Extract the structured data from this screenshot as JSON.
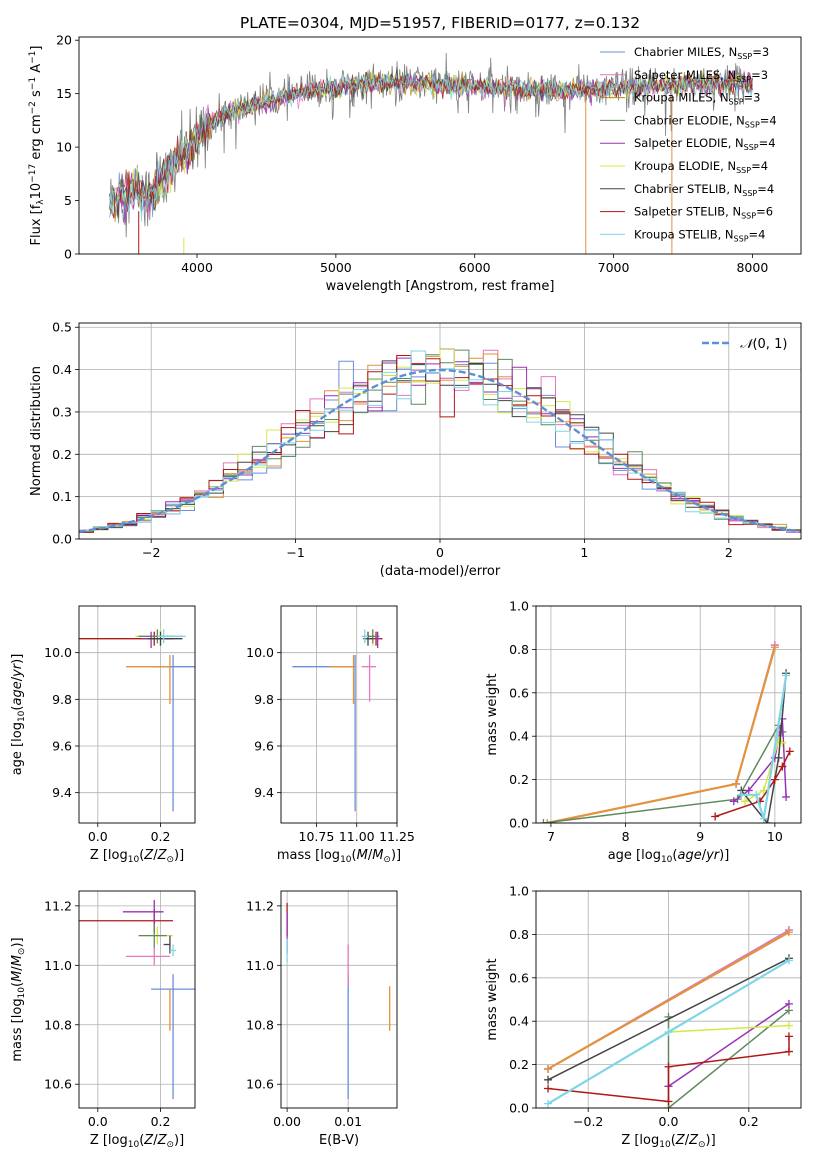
{
  "figure": {
    "title": "PLATE=0304, MJD=51957, FIBERID=0177, z=0.132"
  },
  "chart_data": [
    {
      "id": "spectrum",
      "type": "line",
      "xlabel": "wavelength [Angstrom, rest frame]",
      "ylabel": "Flux [f_λ 10^-17 erg cm^-2 s^-1 A^-1]",
      "xlim": [
        3150,
        8350
      ],
      "ylim": [
        0,
        20.3
      ],
      "xticks": [
        4000,
        5000,
        6000,
        7000,
        8000
      ],
      "yticks": [
        0,
        5,
        10,
        15,
        20
      ],
      "grid": false,
      "legend": "top-right",
      "data_line_color": "#7f7f7f",
      "continuum_x": [
        3370,
        3450,
        3550,
        3650,
        3750,
        3850,
        3950,
        4050,
        4150,
        4300,
        4450,
        4600,
        4800,
        5000,
        5300,
        5600,
        6000,
        6300,
        6600,
        6900,
        7200,
        7500,
        7800,
        8000
      ],
      "continuum_y": [
        4.7,
        5.6,
        6.0,
        5.3,
        7.0,
        8.8,
        9.8,
        11.8,
        12.7,
        13.5,
        14.1,
        14.6,
        15.2,
        15.6,
        16.0,
        16.0,
        15.7,
        15.4,
        15.3,
        15.4,
        15.6,
        15.9,
        16.0,
        15.9
      ],
      "series": [
        {
          "name": "Chabrier MILES, N_SSP=3",
          "color": "#6a8fdc"
        },
        {
          "name": "Salpeter MILES, N_SSP=3",
          "color": "#e377c2"
        },
        {
          "name": "Kroupa MILES, N_SSP=3",
          "color": "#b8860b"
        },
        {
          "name": "Chabrier ELODIE, N_SSP=4",
          "color": "#5e8a5e"
        },
        {
          "name": "Salpeter ELODIE, N_SSP=4",
          "color": "#9b30b5"
        },
        {
          "name": "Kroupa ELODIE, N_SSP=4",
          "color": "#d4e84a"
        },
        {
          "name": "Chabrier STELIB, N_SSP=4",
          "color": "#444444"
        },
        {
          "name": "Salpeter STELIB, N_SSP=6",
          "color": "#b01818"
        },
        {
          "name": "Kroupa STELIB, N_SSP=4",
          "color": "#7fd6e6"
        }
      ],
      "spikes": [
        {
          "x": 3580,
          "y0": 0,
          "y1": 4.0,
          "color": "#b01818"
        },
        {
          "x": 3905,
          "y0": 0,
          "y1": 1.5,
          "color": "#d4e84a"
        },
        {
          "x": 6800,
          "y0": 0,
          "y1": 14.8,
          "color": "#e3923d"
        },
        {
          "x": 7420,
          "y0": 0,
          "y1": 15.0,
          "color": "#e3923d"
        }
      ]
    },
    {
      "id": "residuals",
      "type": "line",
      "xlabel": "(data-model)/error",
      "ylabel": "Normed distribution",
      "xlim": [
        -2.5,
        2.5
      ],
      "ylim": [
        0,
        0.51
      ],
      "xticks": [
        -2,
        -1,
        0,
        1,
        2
      ],
      "xtick_labels": [
        "−2",
        "−1",
        "0",
        "1",
        "2"
      ],
      "yticks": [
        0,
        0.1,
        0.2,
        0.3,
        0.4,
        0.5
      ],
      "ytick_labels": [
        "0.0",
        "0.1",
        "0.2",
        "0.3",
        "0.4",
        "0.5"
      ],
      "grid": true,
      "legend": "top-right",
      "gaussian": {
        "name": "N(0,1)",
        "color": "#5b8fd6"
      },
      "bin_width": 0.1,
      "series_colors": [
        "#6a8fdc",
        "#e377c2",
        "#e3923d",
        "#5e8a5e",
        "#9b30b5",
        "#d4e84a",
        "#444444",
        "#b01818",
        "#7fd6e6"
      ]
    },
    {
      "id": "age-vs-Z",
      "type": "scatter",
      "xlabel": "Z [log10(Z/Z⊙)]",
      "ylabel": "age [log10(age/yr)]",
      "xlim": [
        -0.06,
        0.31
      ],
      "ylim": [
        9.27,
        10.2
      ],
      "xticks": [
        0.0,
        0.2
      ],
      "xtick_labels": [
        "0.0",
        "0.2"
      ],
      "yticks": [
        9.4,
        9.6,
        9.8,
        10.0
      ],
      "ytick_labels": [
        "9.4",
        "9.6",
        "9.8",
        "10.0"
      ],
      "grid": true,
      "points": [
        {
          "x": 0.24,
          "y": 9.94,
          "xerr": [
            0.07,
            0.07
          ],
          "yerr": [
            0.62,
            0.05
          ],
          "color": "#6a8fdc"
        },
        {
          "x": 0.23,
          "y": 9.94,
          "xerr": [
            0.14,
            0.0
          ],
          "yerr": [
            0.16,
            0.05
          ],
          "color": "#e3923d"
        },
        {
          "x": 0.2,
          "y": 10.07,
          "xerr": [
            0.08,
            0.07
          ],
          "yerr": [
            0.04,
            0.03
          ],
          "color": "#d4e84a"
        },
        {
          "x": 0.18,
          "y": 10.06,
          "xerr": [
            0.28,
            0.06
          ],
          "yerr": [
            0.03,
            0.03
          ],
          "color": "#b01818"
        },
        {
          "x": 0.19,
          "y": 10.07,
          "xerr": [
            0.06,
            0.06
          ],
          "yerr": [
            0.03,
            0.03
          ],
          "color": "#5e8a5e"
        },
        {
          "x": 0.17,
          "y": 10.06,
          "xerr": [
            0.03,
            0.03
          ],
          "yerr": [
            0.04,
            0.03
          ],
          "color": "#9b30b5"
        },
        {
          "x": 0.2,
          "y": 10.06,
          "xerr": [
            0.04,
            0.07
          ],
          "yerr": [
            0.03,
            0.03
          ],
          "color": "#444444"
        },
        {
          "x": 0.21,
          "y": 10.07,
          "xerr": [
            0.02,
            0.07
          ],
          "yerr": [
            0.03,
            0.03
          ],
          "color": "#7fd6e6"
        }
      ]
    },
    {
      "id": "age-vs-mass",
      "type": "scatter",
      "xlabel": "mass [log10(M/M⊙)]",
      "ylabel": "",
      "xlim": [
        10.53,
        11.25
      ],
      "ylim": [
        9.27,
        10.2
      ],
      "xticks": [
        10.75,
        11.0,
        11.25
      ],
      "xtick_labels": [
        "10.75",
        "11.00",
        "11.25"
      ],
      "yticks": [
        9.4,
        9.6,
        9.8,
        10.0
      ],
      "ytick_labels": [
        "9.4",
        "9.6",
        "9.8",
        "10.0"
      ],
      "grid": true,
      "points": [
        {
          "x": 10.99,
          "y": 9.94,
          "xerr": [
            0.39,
            0.0
          ],
          "yerr": [
            0.62,
            0.05
          ],
          "color": "#6a8fdc"
        },
        {
          "x": 10.98,
          "y": 9.94,
          "xerr": [
            0.15,
            0.0
          ],
          "yerr": [
            0.16,
            0.05
          ],
          "color": "#e3923d"
        },
        {
          "x": 11.08,
          "y": 9.94,
          "xerr": [
            0.05,
            0.04
          ],
          "yerr": [
            0.15,
            0.05
          ],
          "color": "#e377c2"
        },
        {
          "x": 11.1,
          "y": 10.07,
          "xerr": [
            0.05,
            0.04
          ],
          "yerr": [
            0.04,
            0.03
          ],
          "color": "#d4e84a"
        },
        {
          "x": 11.12,
          "y": 10.06,
          "xerr": [
            0.06,
            0.04
          ],
          "yerr": [
            0.03,
            0.03
          ],
          "color": "#b01818"
        },
        {
          "x": 11.1,
          "y": 10.07,
          "xerr": [
            0.04,
            0.04
          ],
          "yerr": [
            0.03,
            0.03
          ],
          "color": "#5e8a5e"
        },
        {
          "x": 11.13,
          "y": 10.06,
          "xerr": [
            0.02,
            0.02
          ],
          "yerr": [
            0.04,
            0.03
          ],
          "color": "#9b30b5"
        },
        {
          "x": 11.07,
          "y": 10.06,
          "xerr": [
            0.03,
            0.03
          ],
          "yerr": [
            0.03,
            0.03
          ],
          "color": "#444444"
        },
        {
          "x": 11.05,
          "y": 10.07,
          "xerr": [
            0.02,
            0.02
          ],
          "yerr": [
            0.03,
            0.03
          ],
          "color": "#7fd6e6"
        }
      ]
    },
    {
      "id": "massweight-vs-age",
      "type": "line",
      "xlabel": "age  [log10(age/yr)]",
      "ylabel": "mass weight",
      "xlim": [
        6.8,
        10.35
      ],
      "ylim": [
        0,
        1.0
      ],
      "xticks": [
        7,
        8,
        9,
        10
      ],
      "xtick_labels": [
        "7",
        "8",
        "9",
        "10"
      ],
      "yticks": [
        0,
        0.2,
        0.4,
        0.6,
        0.8,
        1.0
      ],
      "ytick_labels": [
        "0.0",
        "0.2",
        "0.4",
        "0.6",
        "0.8",
        "1.0"
      ],
      "grid": true,
      "series": [
        {
          "color": "#6a8fdc",
          "x": [
            9.48,
            10.0
          ],
          "y": [
            0.18,
            0.82
          ]
        },
        {
          "color": "#e377c2",
          "x": [
            9.48,
            10.0
          ],
          "y": [
            0.18,
            0.82
          ]
        },
        {
          "color": "#e3923d",
          "x": [
            6.95,
            9.48,
            10.0
          ],
          "y": [
            0.0,
            0.18,
            0.81
          ]
        },
        {
          "color": "#5e8a5e",
          "x": [
            6.9,
            9.5,
            10.05,
            10.1
          ],
          "y": [
            0.0,
            0.11,
            0.45,
            0.42
          ]
        },
        {
          "color": "#9b30b5",
          "x": [
            9.45,
            9.65,
            10.0,
            10.1,
            10.15
          ],
          "y": [
            0.1,
            0.15,
            0.3,
            0.48,
            0.12
          ]
        },
        {
          "color": "#d4e84a",
          "x": [
            9.6,
            9.85,
            10.05,
            10.1
          ],
          "y": [
            0.1,
            0.15,
            0.38,
            0.37
          ]
        },
        {
          "color": "#444444",
          "x": [
            9.55,
            9.9,
            10.05,
            10.15
          ],
          "y": [
            0.15,
            0.0,
            0.3,
            0.69
          ]
        },
        {
          "color": "#b01818",
          "x": [
            9.2,
            9.8,
            10.0,
            10.1,
            10.2
          ],
          "y": [
            0.03,
            0.1,
            0.2,
            0.26,
            0.33
          ]
        },
        {
          "color": "#7fd6e6",
          "x": [
            9.55,
            9.75,
            9.85,
            10.15
          ],
          "y": [
            0.13,
            0.13,
            0.02,
            0.68
          ]
        }
      ]
    },
    {
      "id": "mass-vs-Z",
      "type": "scatter",
      "xlabel": "Z [log10(Z/Z⊙)]",
      "ylabel": "mass [log10(M/M⊙)]",
      "xlim": [
        -0.06,
        0.31
      ],
      "ylim": [
        10.52,
        11.25
      ],
      "xticks": [
        0.0,
        0.2
      ],
      "xtick_labels": [
        "0.0",
        "0.2"
      ],
      "yticks": [
        10.6,
        10.8,
        11.0,
        11.2
      ],
      "ytick_labels": [
        "10.6",
        "10.8",
        "11.0",
        "11.2"
      ],
      "grid": true,
      "points": [
        {
          "x": 0.24,
          "y": 10.92,
          "xerr": [
            0.07,
            0.07
          ],
          "yerr": [
            0.37,
            0.05
          ],
          "color": "#6a8fdc"
        },
        {
          "x": 0.23,
          "y": 10.92,
          "xerr": [
            0.0,
            0.0
          ],
          "yerr": [
            0.14,
            0.0
          ],
          "color": "#e3923d"
        },
        {
          "x": 0.18,
          "y": 11.03,
          "xerr": [
            0.09,
            0.05
          ],
          "yerr": [
            0.03,
            0.03
          ],
          "color": "#e377c2"
        },
        {
          "x": 0.18,
          "y": 11.15,
          "xerr": [
            0.26,
            0.06
          ],
          "yerr": [
            0.04,
            0.04
          ],
          "color": "#b01818"
        },
        {
          "x": 0.18,
          "y": 11.18,
          "xerr": [
            0.1,
            0.03
          ],
          "yerr": [
            0.04,
            0.04
          ],
          "color": "#9b30b5"
        },
        {
          "x": 0.19,
          "y": 11.1,
          "xerr": [
            0.06,
            0.05
          ],
          "yerr": [
            0.03,
            0.03
          ],
          "color": "#d4e84a"
        },
        {
          "x": 0.18,
          "y": 11.1,
          "xerr": [
            0.05,
            0.04
          ],
          "yerr": [
            0.04,
            0.04
          ],
          "color": "#5e8a5e"
        },
        {
          "x": 0.23,
          "y": 11.07,
          "xerr": [
            0.02,
            0.0
          ],
          "yerr": [
            0.03,
            0.03
          ],
          "color": "#444444"
        },
        {
          "x": 0.24,
          "y": 11.05,
          "xerr": [
            0.01,
            0.01
          ],
          "yerr": [
            0.02,
            0.02
          ],
          "color": "#7fd6e6"
        }
      ]
    },
    {
      "id": "mass-vs-ebv",
      "type": "scatter",
      "xlabel": "E(B-V)",
      "ylabel": "",
      "xlim": [
        -0.001,
        0.018
      ],
      "ylim": [
        10.52,
        11.25
      ],
      "xticks": [
        0.0,
        0.01
      ],
      "xtick_labels": [
        "0.00",
        "0.01"
      ],
      "yticks": [
        10.6,
        10.8,
        11.0,
        11.2
      ],
      "ytick_labels": [
        "10.6",
        "10.8",
        "11.0",
        "11.2"
      ],
      "grid": true,
      "points": [
        {
          "x": 0.01,
          "y": 10.92,
          "xerr": [
            0,
            0
          ],
          "yerr": [
            0.37,
            0.05
          ],
          "color": "#6a8fdc"
        },
        {
          "x": 0.01,
          "y": 11.0,
          "xerr": [
            0,
            0
          ],
          "yerr": [
            0.07,
            0.07
          ],
          "color": "#e377c2"
        },
        {
          "x": 0.0168,
          "y": 10.86,
          "xerr": [
            0,
            0
          ],
          "yerr": [
            0.08,
            0.07
          ],
          "color": "#e3923d"
        },
        {
          "x": 0.0,
          "y": 11.15,
          "xerr": [
            0,
            0
          ],
          "yerr": [
            0.05,
            0.06
          ],
          "color": "#b01818"
        },
        {
          "x": 0.0,
          "y": 11.1,
          "xerr": [
            0,
            0
          ],
          "yerr": [
            0.06,
            0.08
          ],
          "color": "#9b30b5"
        },
        {
          "x": 0.0,
          "y": 11.05,
          "xerr": [
            0,
            0
          ],
          "yerr": [
            0.04,
            0.04
          ],
          "color": "#7fd6e6"
        }
      ]
    },
    {
      "id": "massweight-vs-Z",
      "type": "line",
      "xlabel": "Z [log10(Z/Z⊙)]",
      "ylabel": "mass weight",
      "xlim": [
        -0.33,
        0.33
      ],
      "ylim": [
        0,
        1.0
      ],
      "xticks": [
        -0.2,
        0.0,
        0.2
      ],
      "xtick_labels": [
        "−0.2",
        "0.0",
        "0.2"
      ],
      "yticks": [
        0,
        0.2,
        0.4,
        0.6,
        0.8,
        1.0
      ],
      "ytick_labels": [
        "0.0",
        "0.2",
        "0.4",
        "0.6",
        "0.8",
        "1.0"
      ],
      "grid": true,
      "series": [
        {
          "color": "#6a8fdc",
          "x": [
            -0.3,
            0.3
          ],
          "y": [
            0.18,
            0.82
          ]
        },
        {
          "color": "#e377c2",
          "x": [
            -0.3,
            0.3
          ],
          "y": [
            0.18,
            0.82
          ]
        },
        {
          "color": "#e3923d",
          "x": [
            -0.3,
            0.3
          ],
          "y": [
            0.18,
            0.81
          ]
        },
        {
          "color": "#5e8a5e",
          "x": [
            0.0,
            0.0,
            0.3
          ],
          "y": [
            0.42,
            0.0,
            0.45
          ]
        },
        {
          "color": "#9b30b5",
          "x": [
            0.0,
            0.3
          ],
          "y": [
            0.1,
            0.48
          ]
        },
        {
          "color": "#d4e84a",
          "x": [
            0.0,
            0.3
          ],
          "y": [
            0.35,
            0.38
          ]
        },
        {
          "color": "#444444",
          "x": [
            -0.3,
            0.3
          ],
          "y": [
            0.13,
            0.69
          ]
        },
        {
          "color": "#b01818",
          "x": [
            -0.3,
            0.0,
            0.0,
            0.3,
            0.3
          ],
          "y": [
            0.09,
            0.03,
            0.19,
            0.26,
            0.33
          ]
        },
        {
          "color": "#7fd6e6",
          "x": [
            -0.3,
            0.0,
            0.3
          ],
          "y": [
            0.02,
            0.35,
            0.68
          ]
        }
      ]
    }
  ]
}
